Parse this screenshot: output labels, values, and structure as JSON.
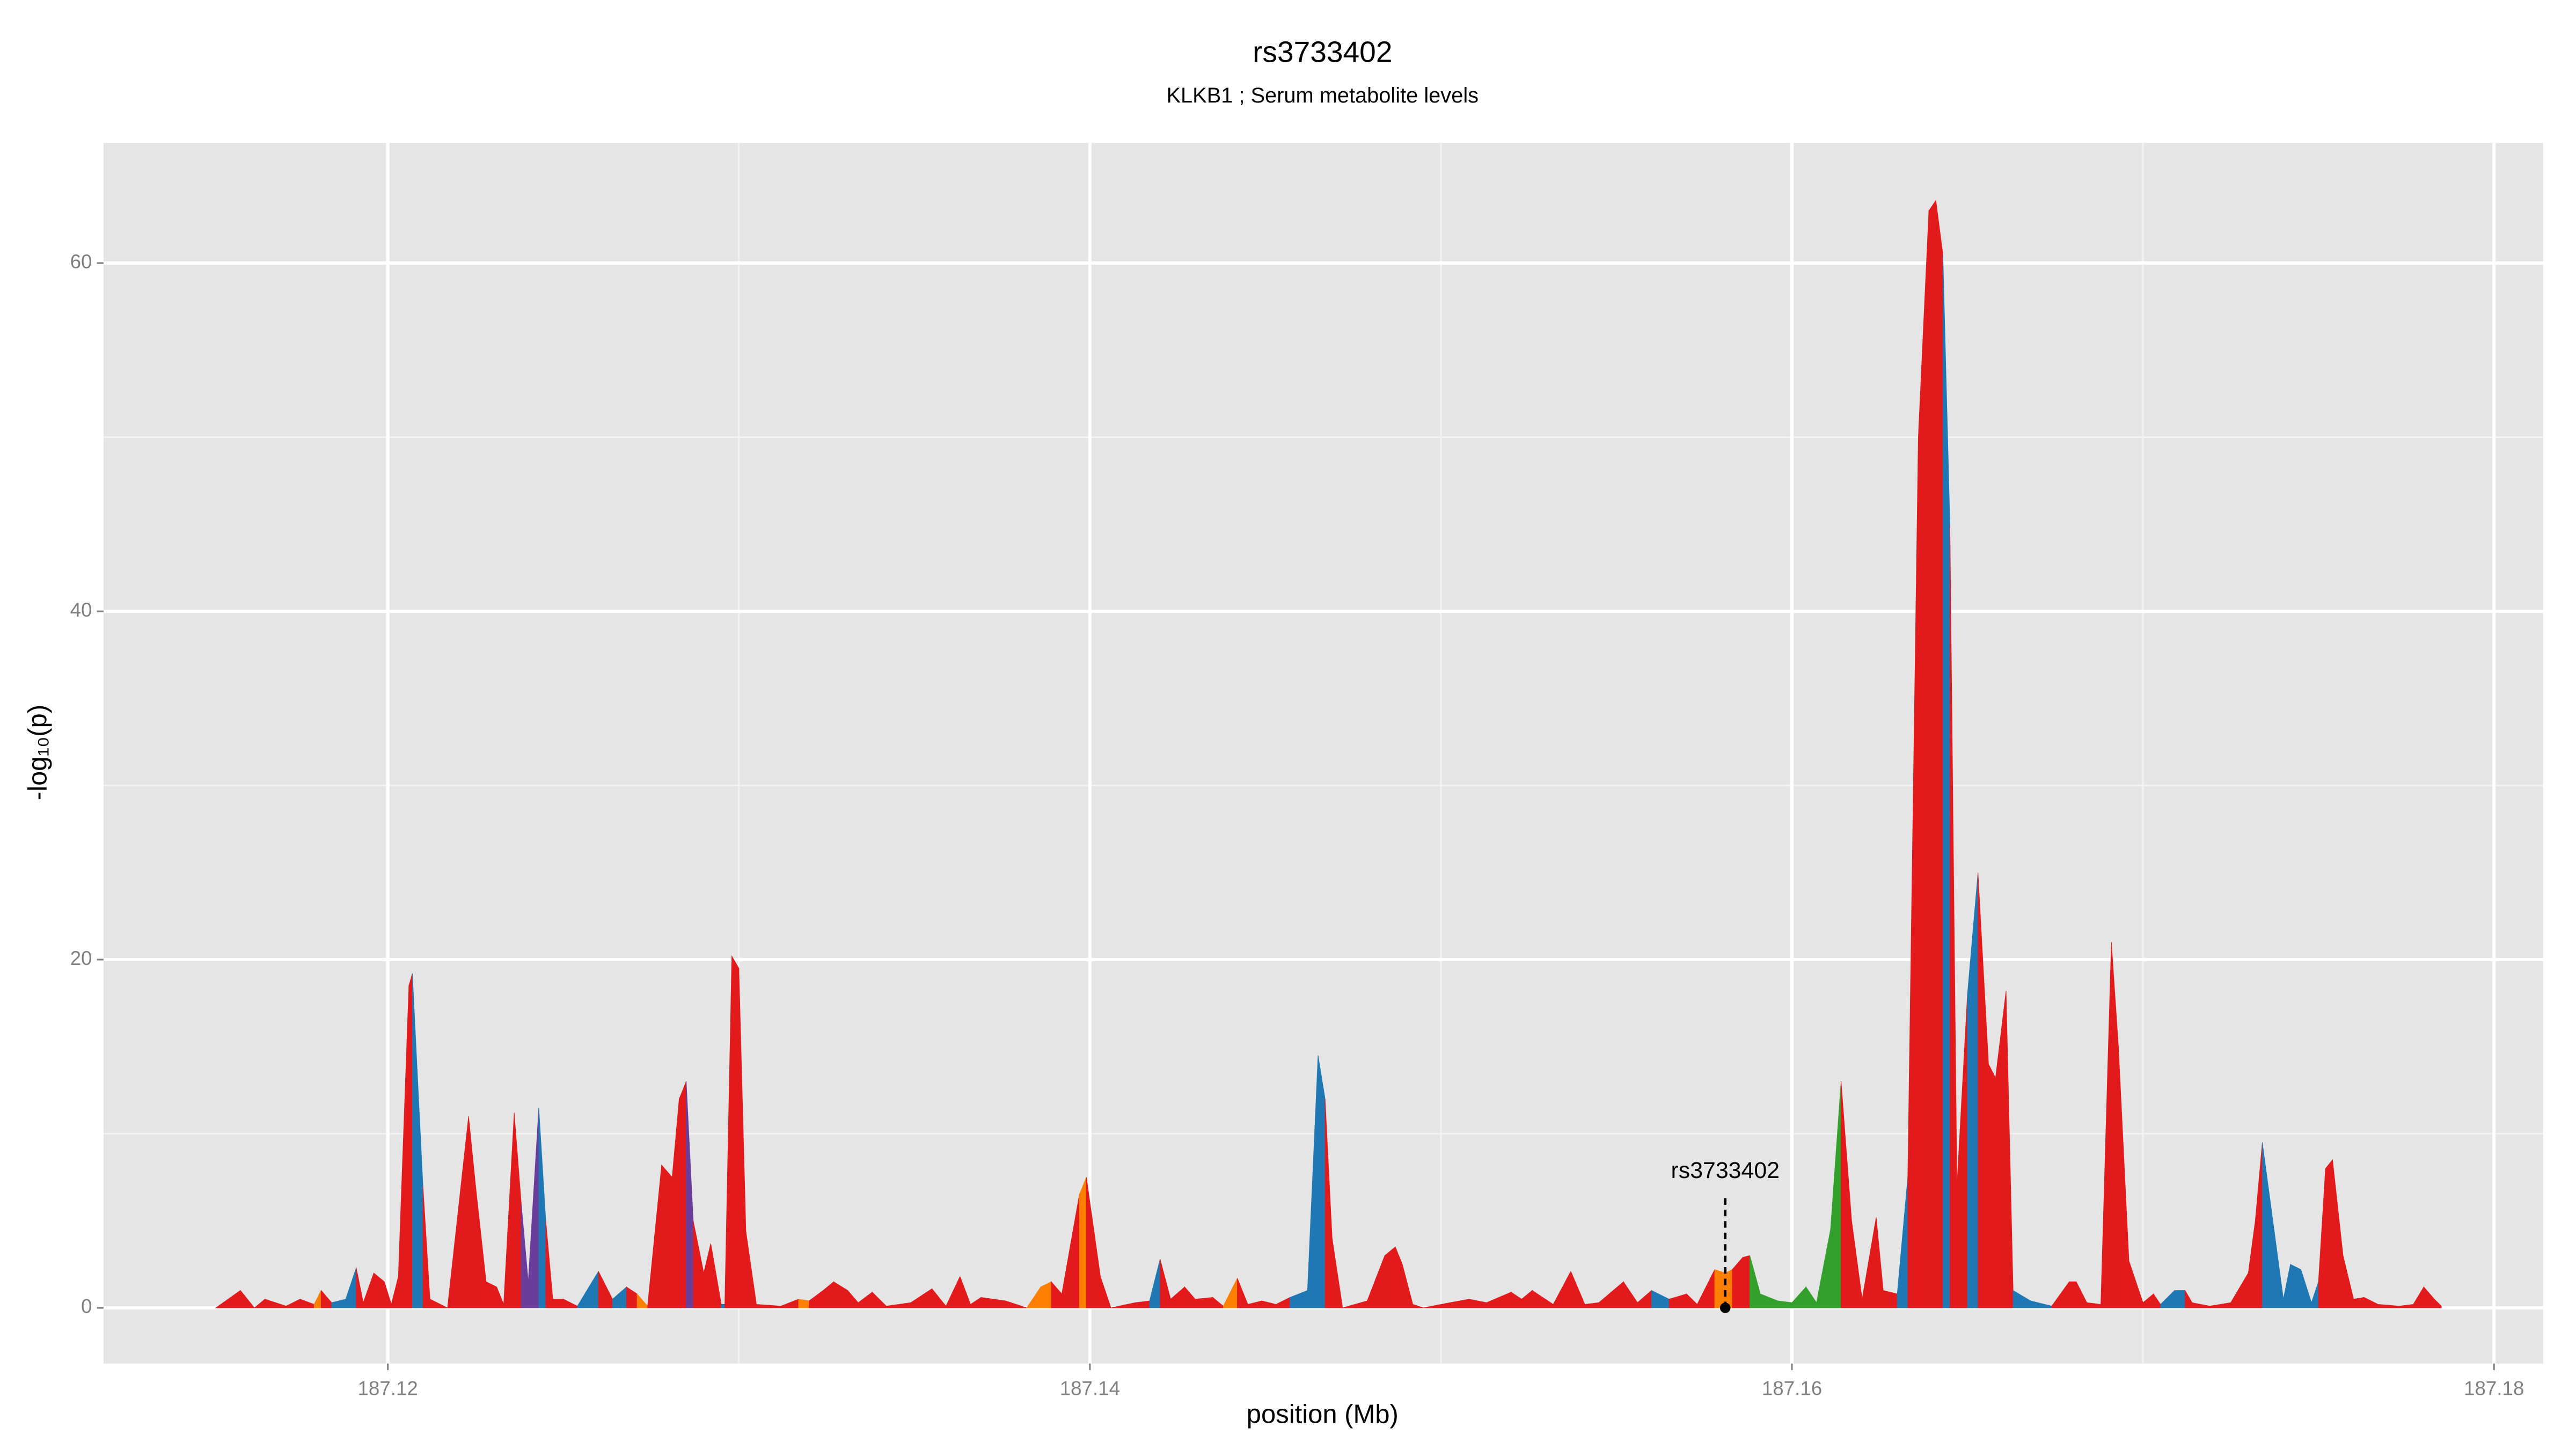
{
  "chart_data": {
    "type": "area",
    "title": "rs3733402",
    "subtitle": "KLKB1 ; Serum metabolite levels",
    "x_label": "position (Mb)",
    "y_label": "-log₁₀(p)",
    "xlim": [
      187.1119,
      187.1814
    ],
    "ylim": [
      -3.2,
      66.9
    ],
    "xticks": [
      187.12,
      187.14,
      187.16,
      187.18
    ],
    "yticks": [
      0,
      20,
      40,
      60
    ],
    "xminor": [
      187.13,
      187.15,
      187.17
    ],
    "yminor": [
      10,
      30,
      50
    ],
    "grid": true,
    "annotation": {
      "text": "rs3733402",
      "x": 187.1581,
      "y": 0
    },
    "series": [
      {
        "x": [
          187.1151,
          187.1158,
          187.1162,
          187.1165,
          187.1171,
          187.1175,
          187.1179,
          187.1181,
          187.1184,
          187.1188,
          187.1191,
          187.1193,
          187.1196,
          187.1199,
          187.1201,
          187.1203,
          187.1206,
          187.1207,
          187.121,
          187.1212,
          187.1217,
          187.1223,
          187.1225,
          187.1228,
          187.1231,
          187.1233,
          187.1236,
          187.1238,
          187.124,
          187.1243,
          187.1245,
          187.1247,
          187.125,
          187.1254,
          187.126,
          187.1264,
          187.1268,
          187.1271,
          187.1274,
          187.1278,
          187.1281,
          187.1283,
          187.1285,
          187.1287,
          187.129,
          187.1292,
          187.1295,
          187.1296,
          187.1298,
          187.13,
          187.1302,
          187.1305,
          187.1312,
          187.1317,
          187.132,
          187.1324,
          187.1327,
          187.1331,
          187.1334,
          187.1338,
          187.1342,
          187.1349,
          187.1355,
          187.1359,
          187.1363,
          187.1366,
          187.1369,
          187.1376,
          187.1382,
          187.1386,
          187.1389,
          187.1392,
          187.1397,
          187.1399,
          187.1403,
          187.1406,
          187.1413,
          187.1417,
          187.142,
          187.1423,
          187.1427,
          187.143,
          187.1435,
          187.1438,
          187.1442,
          187.1445,
          187.1449,
          187.1453,
          187.1457,
          187.1462,
          187.1465,
          187.1467,
          187.1469,
          187.1472,
          187.1479,
          187.1484,
          187.1487,
          187.1489,
          187.1492,
          187.1495,
          187.15,
          187.1508,
          187.1513,
          187.152,
          187.1523,
          187.1526,
          187.1532,
          187.1537,
          187.1541,
          187.1545,
          187.1552,
          187.1556,
          187.156,
          187.1565,
          187.157,
          187.1573,
          187.1578,
          187.1581,
          187.1583,
          187.1586,
          187.1588,
          187.1591,
          187.1596,
          187.16,
          187.1604,
          187.1607,
          187.1611,
          187.1614,
          187.1617,
          187.162,
          187.1624,
          187.1626,
          187.163,
          187.1633,
          187.1636,
          187.1639,
          187.1641,
          187.1643,
          187.1645,
          187.1647,
          187.165,
          187.1653,
          187.1656,
          187.1658,
          187.1661,
          187.1663,
          187.1668,
          187.1674,
          187.1679,
          187.1681,
          187.1684,
          187.1688,
          187.1691,
          187.1693,
          187.1696,
          187.17,
          187.1703,
          187.1705,
          187.1709,
          187.1712,
          187.1714,
          187.1719,
          187.1725,
          187.173,
          187.1732,
          187.1734,
          187.1738,
          187.174,
          187.1742,
          187.1745,
          187.1748,
          187.175,
          187.1752,
          187.1754,
          187.1757,
          187.176,
          187.1763,
          187.1767,
          187.1773,
          187.1777,
          187.178,
          187.1783,
          187.1785
        ],
        "values": [
          0,
          1,
          0,
          0.5,
          0.1,
          0.5,
          0.2,
          1,
          0.3,
          0.5,
          2.3,
          0.3,
          2,
          1.5,
          0.2,
          1.8,
          18.5,
          19.2,
          7,
          0.5,
          0,
          11,
          7,
          1.5,
          1.2,
          0.2,
          11.2,
          6,
          1.5,
          11.5,
          5,
          0.5,
          0.5,
          0.1,
          2.1,
          0.5,
          1.2,
          0.8,
          0.1,
          8.2,
          7.5,
          12,
          13,
          5,
          2,
          3.7,
          0.2,
          0.2,
          20.2,
          19.5,
          4.4,
          0.2,
          0.1,
          0.5,
          0.4,
          1,
          1.5,
          1,
          0.3,
          0.9,
          0.1,
          0.3,
          1.1,
          0.1,
          1.8,
          0.2,
          0.6,
          0.4,
          0,
          1.2,
          1.5,
          0.8,
          6.5,
          7.5,
          1.8,
          0,
          0.3,
          0.4,
          2.8,
          0.5,
          1.2,
          0.5,
          0.6,
          0.1,
          1.7,
          0.2,
          0.4,
          0.2,
          0.6,
          1,
          14.5,
          12,
          4,
          0,
          0.4,
          3,
          3.5,
          2.5,
          0.2,
          0,
          0.2,
          0.5,
          0.3,
          0.9,
          0.5,
          1,
          0.2,
          2.1,
          0.2,
          0.3,
          1.5,
          0.3,
          1,
          0.5,
          0.8,
          0.2,
          2.2,
          2,
          2.2,
          2.9,
          3,
          0.8,
          0.4,
          0.3,
          1.2,
          0.3,
          4.5,
          13,
          5,
          0.5,
          5.2,
          1,
          0.8,
          7.5,
          50,
          63,
          63.6,
          60.5,
          45,
          7,
          18,
          25,
          14,
          13.2,
          18.2,
          1,
          0.4,
          0.1,
          1.5,
          1.5,
          0.3,
          0.2,
          21,
          15,
          2.7,
          0.3,
          0.8,
          0.2,
          1,
          1,
          0.3,
          0.1,
          0.3,
          2,
          5,
          9.5,
          3.5,
          0.5,
          2.5,
          2.2,
          0.3,
          1.5,
          8,
          8.5,
          3,
          0.5,
          0.6,
          0.2,
          0.1,
          0.2,
          1.2,
          0.5,
          0.1
        ],
        "colors": [
          "#e31a1c",
          "#e31a1c",
          "#e31a1c",
          "#e31a1c",
          "#e31a1c",
          "#e31a1c",
          "#e31a1c",
          "#ff7f00",
          "#e31a1c",
          "#1f78b4",
          "#1f78b4",
          "#e31a1c",
          "#e31a1c",
          "#e31a1c",
          "#e31a1c",
          "#e31a1c",
          "#e31a1c",
          "#e31a1c",
          "#1f78b4",
          "#e31a1c",
          "#e31a1c",
          "#e31a1c",
          "#e31a1c",
          "#e31a1c",
          "#e31a1c",
          "#e31a1c",
          "#e31a1c",
          "#e31a1c",
          "#6a3d9a",
          "#6a3d9a",
          "#1f78b4",
          "#e31a1c",
          "#e31a1c",
          "#e31a1c",
          "#1f78b4",
          "#e31a1c",
          "#1f78b4",
          "#e31a1c",
          "#ff7f00",
          "#e31a1c",
          "#e31a1c",
          "#e31a1c",
          "#e31a1c",
          "#6a3d9a",
          "#e31a1c",
          "#e31a1c",
          "#e31a1c",
          "#1f78b4",
          "#e31a1c",
          "#e31a1c",
          "#e31a1c",
          "#e31a1c",
          "#e31a1c",
          "#e31a1c",
          "#ff7f00",
          "#e31a1c",
          "#e31a1c",
          "#e31a1c",
          "#e31a1c",
          "#e31a1c",
          "#e31a1c",
          "#e31a1c",
          "#e31a1c",
          "#e31a1c",
          "#e31a1c",
          "#e31a1c",
          "#e31a1c",
          "#e31a1c",
          "#e31a1c",
          "#ff7f00",
          "#ff7f00",
          "#e31a1c",
          "#e31a1c",
          "#ff7f00",
          "#e31a1c",
          "#e31a1c",
          "#e31a1c",
          "#e31a1c",
          "#1f78b4",
          "#e31a1c",
          "#e31a1c",
          "#e31a1c",
          "#e31a1c",
          "#e31a1c",
          "#ff7f00",
          "#e31a1c",
          "#e31a1c",
          "#e31a1c",
          "#e31a1c",
          "#1f78b4",
          "#1f78b4",
          "#1f78b4",
          "#e31a1c",
          "#e31a1c",
          "#e31a1c",
          "#e31a1c",
          "#e31a1c",
          "#e31a1c",
          "#e31a1c",
          "#e31a1c",
          "#e31a1c",
          "#e31a1c",
          "#e31a1c",
          "#e31a1c",
          "#e31a1c",
          "#e31a1c",
          "#e31a1c",
          "#e31a1c",
          "#e31a1c",
          "#e31a1c",
          "#e31a1c",
          "#e31a1c",
          "#e31a1c",
          "#1f78b4",
          "#e31a1c",
          "#e31a1c",
          "#e31a1c",
          "#ff7f00",
          "#ff7f00",
          "#e31a1c",
          "#e31a1c",
          "#33a02c",
          "#33a02c",
          "#33a02c",
          "#33a02c",
          "#33a02c",
          "#33a02c",
          "#33a02c",
          "#e31a1c",
          "#e31a1c",
          "#e31a1c",
          "#e31a1c",
          "#e31a1c",
          "#1f78b4",
          "#e31a1c",
          "#e31a1c",
          "#e31a1c",
          "#e31a1c",
          "#1f78b4",
          "#e31a1c",
          "#e31a1c",
          "#1f78b4",
          "#e31a1c",
          "#e31a1c",
          "#e31a1c",
          "#e31a1c",
          "#1f78b4",
          "#1f78b4",
          "#e31a1c",
          "#e31a1c",
          "#e31a1c",
          "#e31a1c",
          "#e31a1c",
          "#e31a1c",
          "#e31a1c",
          "#e31a1c",
          "#e31a1c",
          "#e31a1c",
          "#1f78b4",
          "#1f78b4",
          "#e31a1c",
          "#e31a1c",
          "#e31a1c",
          "#e31a1c",
          "#e31a1c",
          "#e31a1c",
          "#1f78b4",
          "#1f78b4",
          "#1f78b4",
          "#1f78b4",
          "#1f78b4",
          "#1f78b4",
          "#e31a1c",
          "#e31a1c",
          "#e31a1c",
          "#e31a1c",
          "#e31a1c",
          "#e31a1c",
          "#e31a1c",
          "#e31a1c",
          "#e31a1c",
          "#e31a1c",
          "#e31a1c"
        ]
      }
    ]
  }
}
